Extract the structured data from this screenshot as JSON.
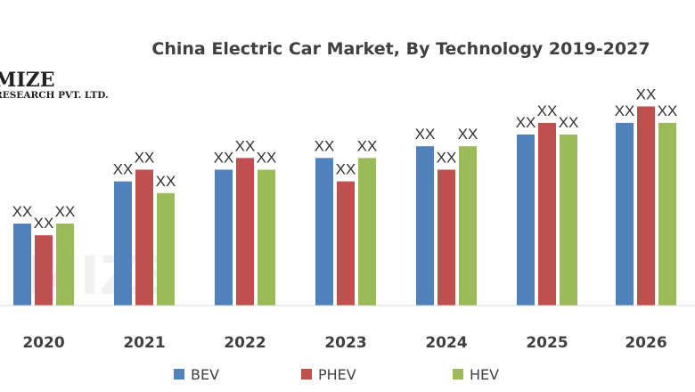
{
  "watermark": {
    "main": "MIZE",
    "sub": "RESEARCH PVT. LTD."
  },
  "chart_data": {
    "type": "bar",
    "title": "China Electric Car Market, By Technology 2019-2027",
    "xlabel": "",
    "ylabel": "",
    "categories": [
      "2020",
      "2021",
      "2022",
      "2023",
      "2024",
      "2025",
      "2026"
    ],
    "ylim": [
      0,
      10
    ],
    "gridlines": false,
    "legend_position": "bottom",
    "series": [
      {
        "name": "BEV",
        "color": "#4f81bd",
        "values": [
          3.5,
          5.3,
          5.8,
          6.3,
          6.8,
          7.3,
          7.8
        ],
        "data_labels": [
          "XX",
          "XX",
          "XX",
          "XX",
          "XX",
          "XX",
          "XX"
        ]
      },
      {
        "name": "PHEV",
        "color": "#c0504d",
        "values": [
          3.0,
          5.8,
          6.3,
          5.3,
          5.8,
          7.8,
          8.5
        ],
        "data_labels": [
          "XX",
          "XX",
          "XX",
          "XX",
          "XX",
          "XX",
          "XX"
        ]
      },
      {
        "name": "HEV",
        "color": "#9bbb59",
        "values": [
          3.5,
          4.8,
          5.8,
          6.3,
          6.8,
          7.3,
          7.8
        ],
        "data_labels": [
          "XX",
          "XX",
          "XX",
          "XX",
          "XX",
          "XX",
          "XX"
        ]
      }
    ]
  }
}
